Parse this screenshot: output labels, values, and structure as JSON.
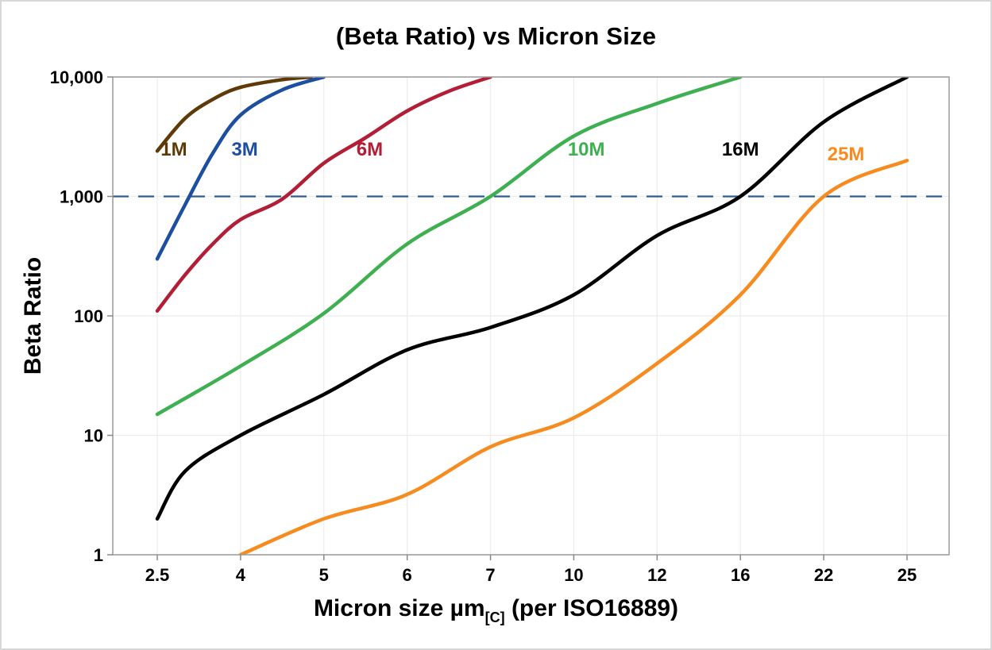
{
  "title": "(Beta Ratio) vs Micron Size",
  "axis": {
    "y_label": "Beta Ratio",
    "x_label_prefix": "Micron size µm",
    "x_label_subscript": "[C]",
    "x_label_suffix": " (per ISO16889)"
  },
  "chart_data": {
    "type": "line",
    "title": "(Beta Ratio) vs Micron Size",
    "xlabel": "Micron size µm[C] (per ISO16889)",
    "ylabel": "Beta Ratio",
    "x_scale": "categorical-equal-spacing",
    "y_scale": "log",
    "ylim": [
      1,
      10000
    ],
    "grid": true,
    "x_values": [
      2.5,
      4,
      5,
      6,
      7,
      10,
      12,
      16,
      22,
      25
    ],
    "x_tick_labels": [
      "2.5",
      "4",
      "5",
      "6",
      "7",
      "10",
      "12",
      "16",
      "22",
      "25"
    ],
    "y_tick_values": [
      1,
      10,
      100,
      1000,
      10000
    ],
    "y_tick_labels": [
      "1",
      "10",
      "100",
      "1,000",
      "10,000"
    ],
    "reference_line": {
      "y": 1000,
      "style": "dashed",
      "color": "#2e5e8e"
    },
    "series": [
      {
        "name": "1M",
        "color": "#5e3a08",
        "label_at": {
          "x": 2.8,
          "y": 2200
        },
        "points": [
          [
            2.5,
            2400
          ],
          [
            3,
            4500
          ],
          [
            3.5,
            6500
          ],
          [
            4,
            8200
          ],
          [
            4.5,
            9500
          ],
          [
            4.85,
            10000
          ]
        ]
      },
      {
        "name": "3M",
        "color": "#1d4fa1",
        "label_at": {
          "x": 4.05,
          "y": 2200
        },
        "points": [
          [
            2.5,
            300
          ],
          [
            3,
            850
          ],
          [
            3.5,
            2300
          ],
          [
            4,
            4800
          ],
          [
            4.5,
            7800
          ],
          [
            5,
            10000
          ]
        ]
      },
      {
        "name": "6M",
        "color": "#b21e35",
        "label_at": {
          "x": 5.55,
          "y": 2200
        },
        "points": [
          [
            2.5,
            110
          ],
          [
            3,
            220
          ],
          [
            3.5,
            400
          ],
          [
            4,
            640
          ],
          [
            4.5,
            950
          ],
          [
            5,
            1900
          ],
          [
            5.5,
            3100
          ],
          [
            6,
            5200
          ],
          [
            6.5,
            7600
          ],
          [
            7,
            10000
          ]
        ]
      },
      {
        "name": "10M",
        "color": "#3eb051",
        "label_at": {
          "x": 10.3,
          "y": 2200
        },
        "points": [
          [
            2.5,
            15
          ],
          [
            4,
            38
          ],
          [
            5,
            105
          ],
          [
            6,
            400
          ],
          [
            7,
            1000
          ],
          [
            10,
            3200
          ],
          [
            12,
            6000
          ],
          [
            16,
            10000
          ]
        ]
      },
      {
        "name": "16M",
        "color": "#000000",
        "label_at": {
          "x": 16,
          "y": 2200
        },
        "points": [
          [
            2.5,
            2
          ],
          [
            3,
            5
          ],
          [
            4,
            10
          ],
          [
            5,
            22
          ],
          [
            6,
            52
          ],
          [
            7,
            80
          ],
          [
            10,
            150
          ],
          [
            12,
            470
          ],
          [
            16,
            1000
          ],
          [
            22,
            4200
          ],
          [
            25,
            10000
          ]
        ]
      },
      {
        "name": "25M",
        "color": "#f68b1f",
        "label_at": {
          "x": 22.8,
          "y": 2000
        },
        "points": [
          [
            4,
            1
          ],
          [
            5,
            2
          ],
          [
            6,
            3.2
          ],
          [
            7,
            8
          ],
          [
            10,
            14
          ],
          [
            12,
            40
          ],
          [
            16,
            150
          ],
          [
            22,
            1000
          ],
          [
            25,
            2000
          ]
        ]
      }
    ]
  }
}
